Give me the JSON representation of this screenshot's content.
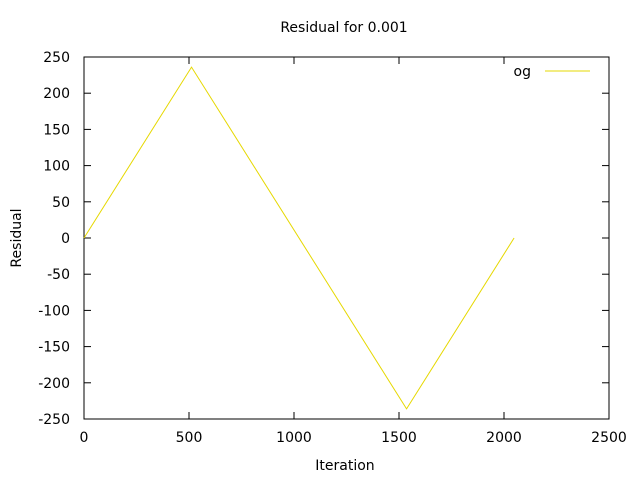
{
  "chart_data": {
    "type": "line",
    "title": "Residual for 0.001",
    "xlabel": "Iteration",
    "ylabel": "Residual",
    "xlim": [
      0,
      2500
    ],
    "ylim": [
      -250,
      250
    ],
    "xticks": [
      0,
      500,
      1000,
      1500,
      2000,
      2500
    ],
    "yticks": [
      -250,
      -200,
      -150,
      -100,
      -50,
      0,
      50,
      100,
      150,
      200,
      250
    ],
    "grid": false,
    "legend": "top-right",
    "series": [
      {
        "name": "og",
        "color": "#e6d800",
        "x": [
          0,
          512,
          1536,
          2048
        ],
        "y": [
          0,
          236,
          -236,
          0
        ]
      }
    ]
  }
}
